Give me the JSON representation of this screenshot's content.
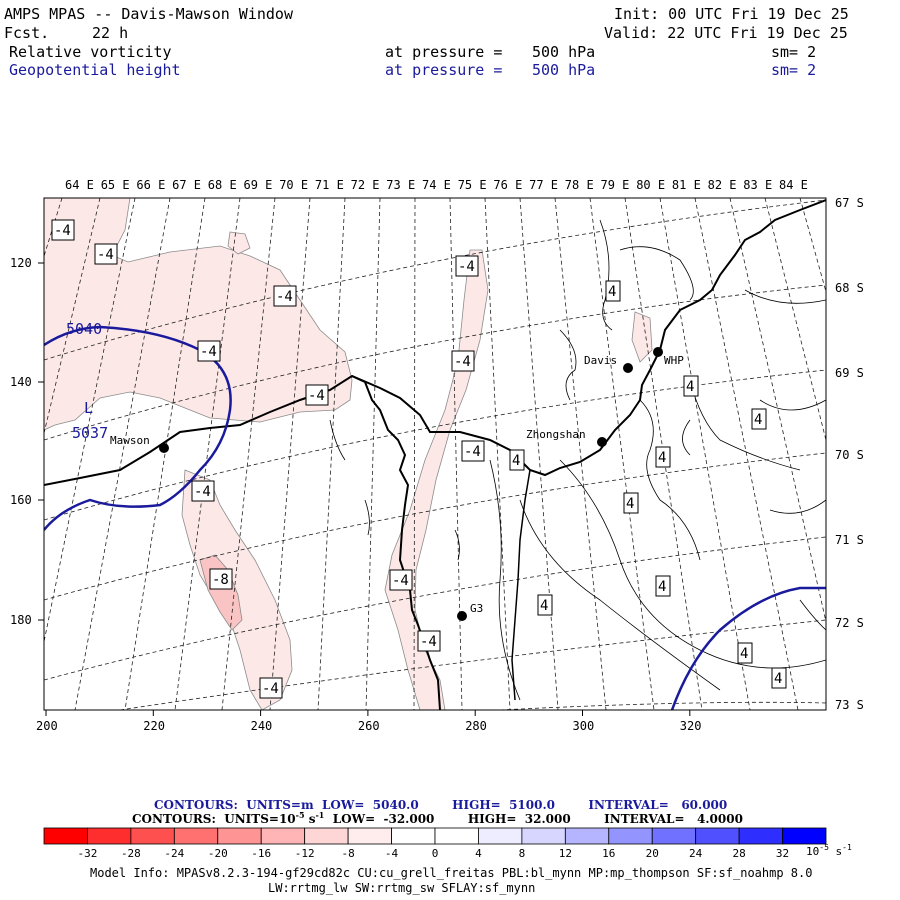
{
  "header": {
    "title": "AMPS MPAS -- Davis-Mawson Window",
    "fcst_label": "Fcst.",
    "fcst_value": "22 h",
    "init": "Init: 00 UTC Fri 19 Dec 25",
    "valid": "Valid: 22 UTC Fri 19 Dec 25"
  },
  "fields": [
    {
      "name": "Relative vorticity",
      "level": "at pressure =",
      "value": "500 hPa",
      "sm": "sm= 2",
      "color": "#000000"
    },
    {
      "name": "Geopotential height",
      "level": "at pressure =",
      "value": "500 hPa",
      "sm": "sm= 2",
      "color": "#1a1a9c"
    }
  ],
  "map": {
    "lon_labels": [
      "64 E",
      "65 E",
      "66 E",
      "67 E",
      "68 E",
      "69 E",
      "70 E",
      "71 E",
      "72 E",
      "73 E",
      "74 E",
      "75 E",
      "76 E",
      "77 E",
      "78 E",
      "79 E",
      "80 E",
      "81 E",
      "82 E",
      "83 E",
      "84 E"
    ],
    "lat_labels": [
      "67 S",
      "68 S",
      "69 S",
      "70 S",
      "71 S",
      "72 S",
      "73 S"
    ],
    "x_ticks": [
      "200",
      "220",
      "240",
      "260",
      "280",
      "300",
      "320"
    ],
    "y_ticks": [
      "120",
      "140",
      "160",
      "180"
    ],
    "stations": [
      {
        "name": "Davis"
      },
      {
        "name": "WHP"
      },
      {
        "name": "Mawson"
      },
      {
        "name": "Zhongshan"
      },
      {
        "name": "G3"
      }
    ],
    "height_labels": [
      {
        "text": "5040"
      },
      {
        "text": "5037"
      },
      {
        "text": "L"
      }
    ],
    "vort_labels": [
      "-4",
      "-4",
      "-4",
      "-4",
      "-4",
      "-4",
      "-4",
      "-4",
      "-4",
      "-4",
      "-4",
      "-4",
      "-8",
      "4",
      "4",
      "4",
      "4",
      "4",
      "4",
      "4",
      "4",
      "4",
      "4"
    ]
  },
  "contours": {
    "line1": "CONTOURS:  UNITS=m  LOW=  5040.0        HIGH=  5100.0        INTERVAL=   60.000",
    "line2_a": "CONTOURS:  UNITS=10",
    "line2_exp": "-5",
    "line2_b": " s",
    "line2_exp2": "-1",
    "line2_c": "  LOW=  -32.000        HIGH=  32.000        INTERVAL=   4.0000"
  },
  "colorbar": {
    "colors": [
      "#ff0000",
      "#ff2e2e",
      "#ff5050",
      "#ff7171",
      "#ff9494",
      "#ffb5b5",
      "#ffd6d6",
      "#ffeded",
      "#ffffff",
      "#ffffff",
      "#ededff",
      "#d6d6ff",
      "#b5b5ff",
      "#9494ff",
      "#7171ff",
      "#5050ff",
      "#2e2eff",
      "#0000ff"
    ],
    "labels": [
      "-32",
      "-28",
      "-24",
      "-20",
      "-16",
      "-12",
      "-8",
      "-4",
      "0",
      "4",
      "8",
      "12",
      "16",
      "20",
      "24",
      "28",
      "32"
    ],
    "units_a": "10",
    "units_exp": "-5",
    "units_b": " s",
    "units_exp2": "-1"
  },
  "footer": {
    "line1": "Model Info: MPASv8.2.3-194-gf29cd82c CU:cu_grell_freitas PBL:bl_mynn MP:mp_thompson SF:sf_noahmp 8.0",
    "line2": "LW:rrtmg_lw SW:rrtmg_sw SFLAY:sf_mynn"
  }
}
